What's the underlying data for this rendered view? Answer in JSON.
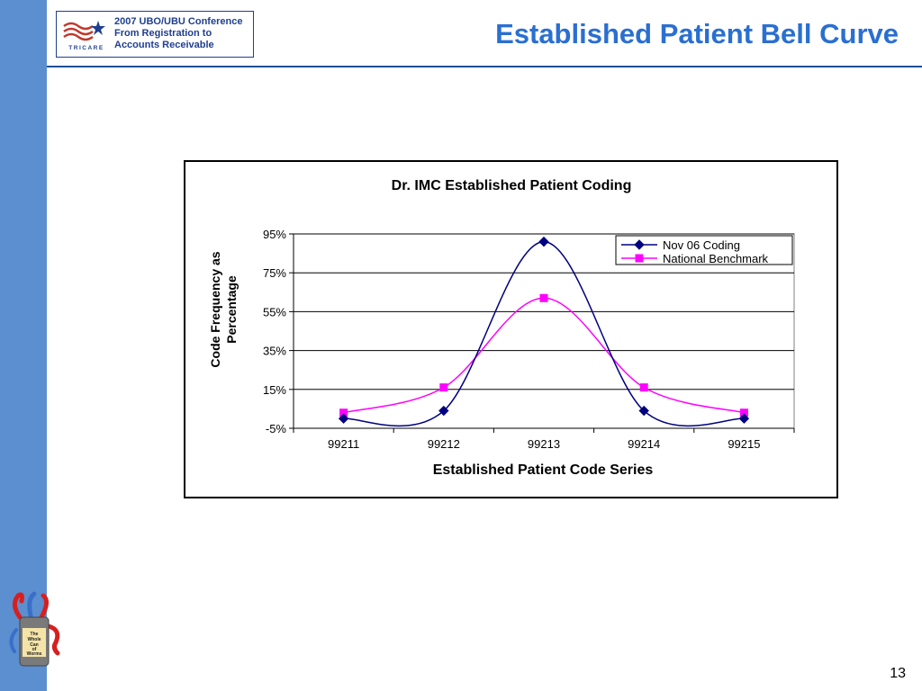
{
  "header": {
    "logo_wordmark": "TRICARE",
    "logo_line1": "2007 UBO/UBU Conference",
    "logo_line2": "From Registration to",
    "logo_line3": "Accounts Receivable",
    "title": "Established Patient Bell Curve"
  },
  "footer": {
    "page_number": "13",
    "emblem_lines": [
      "The",
      "Whole",
      "Can",
      "of",
      "Worms"
    ]
  },
  "colors": {
    "sidebar": "#5b8fd0",
    "title": "#2a6fd1",
    "series_nov": "#000080",
    "series_nat": "#ff00ff"
  },
  "chart_data": {
    "type": "line",
    "title": "Dr. IMC Established Patient Coding",
    "xlabel": "Established Patient Code Series",
    "ylabel": "Code Frequency as Percentage",
    "categories": [
      "99211",
      "99212",
      "99213",
      "99214",
      "99215"
    ],
    "ylim": [
      -5,
      95
    ],
    "yticks": [
      -5,
      15,
      35,
      55,
      75,
      95
    ],
    "ytick_labels": [
      "-5%",
      "15%",
      "35%",
      "55%",
      "75%",
      "95%"
    ],
    "grid": true,
    "smooth": true,
    "legend_position": "top-right",
    "series": [
      {
        "name": "Nov 06 Coding",
        "marker": "diamond",
        "color": "#000080",
        "values": [
          0,
          4,
          91,
          4,
          0
        ]
      },
      {
        "name": "National Benchmark",
        "marker": "square",
        "color": "#ff00ff",
        "values": [
          3,
          16,
          62,
          16,
          3
        ]
      }
    ]
  }
}
